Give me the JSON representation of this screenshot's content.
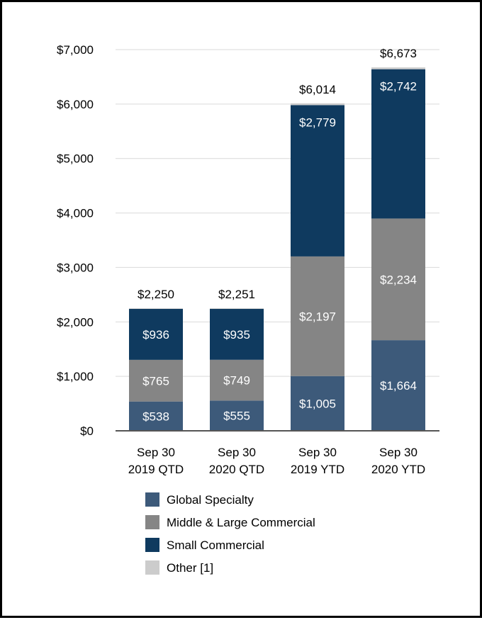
{
  "chart_data": {
    "type": "bar",
    "stacked": true,
    "title": "",
    "xlabel": "",
    "ylabel": "",
    "ylim": [
      0,
      7000
    ],
    "yticks": [
      0,
      1000,
      2000,
      3000,
      4000,
      5000,
      6000,
      7000
    ],
    "ytick_labels": [
      "$0",
      "$1,000",
      "$2,000",
      "$3,000",
      "$4,000",
      "$5,000",
      "$6,000",
      "$7,000"
    ],
    "grid": true,
    "legend_position": "bottom",
    "categories": [
      {
        "line1": "Sep 30",
        "line2": "2019 QTD"
      },
      {
        "line1": "Sep 30",
        "line2": "2020 QTD"
      },
      {
        "line1": "Sep 30",
        "line2": "2019 YTD"
      },
      {
        "line1": "Sep 30",
        "line2": "2020 YTD"
      }
    ],
    "series": [
      {
        "name": "Global Specialty",
        "color": "#3d5a7a",
        "values": [
          538,
          555,
          1005,
          1664
        ],
        "labels": [
          "$538",
          "$555",
          "$1,005",
          "$1,664"
        ]
      },
      {
        "name": "Middle & Large Commercial",
        "color": "#858585",
        "values": [
          765,
          749,
          2197,
          2234
        ],
        "labels": [
          "$765",
          "$749",
          "$2,197",
          "$2,234"
        ]
      },
      {
        "name": "Small Commercial",
        "color": "#0f3a5f",
        "values": [
          936,
          935,
          2779,
          2742
        ],
        "labels": [
          "$936",
          "$935",
          "$2,779",
          "$2,742"
        ]
      },
      {
        "name": "Other [1]",
        "color": "#cccccc",
        "values": [
          11,
          12,
          33,
          33
        ],
        "labels": [
          "",
          "",
          "",
          ""
        ]
      }
    ],
    "totals": [
      2250,
      2251,
      6014,
      6673
    ],
    "total_labels": [
      "$2,250",
      "$2,251",
      "$6,014",
      "$6,673"
    ],
    "colors": {
      "gridline": "#d9d9d9",
      "axis": "#555555"
    }
  }
}
